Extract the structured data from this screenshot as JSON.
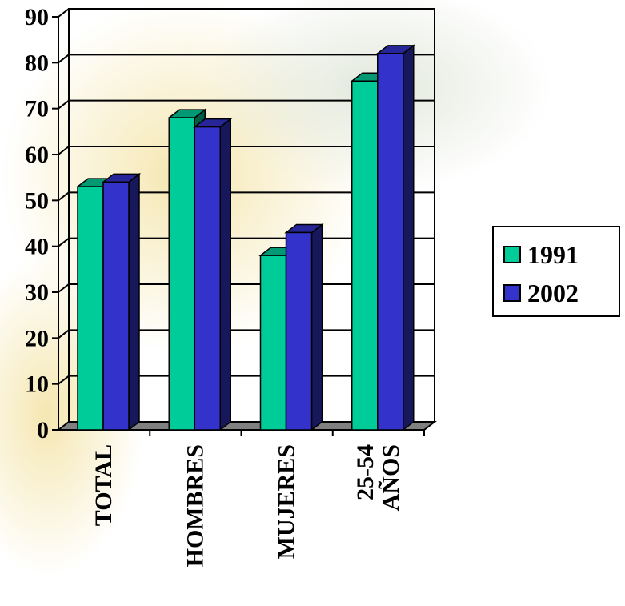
{
  "chart_data": {
    "type": "bar",
    "categories": [
      [
        "TOTAL"
      ],
      [
        "HOMBRES"
      ],
      [
        "MUJERES"
      ],
      [
        "25-54",
        "AÑOS"
      ]
    ],
    "series": [
      {
        "name": "1991",
        "values": [
          53,
          68,
          38,
          76
        ],
        "color": "#00cc99"
      },
      {
        "name": "2002",
        "values": [
          54,
          66,
          43,
          82
        ],
        "color": "#3333cc"
      }
    ],
    "yticks": [
      "0",
      "10",
      "20",
      "30",
      "40",
      "50",
      "60",
      "70",
      "80",
      "90"
    ],
    "ylim": [
      0,
      90
    ],
    "grid": true,
    "legend": "right"
  }
}
